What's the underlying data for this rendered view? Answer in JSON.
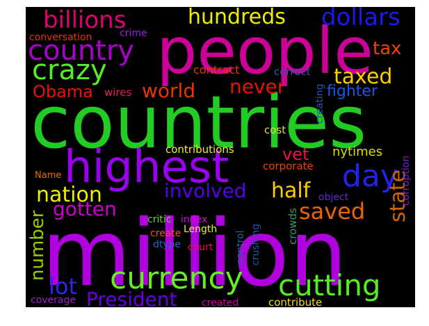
{
  "wordcloud": {
    "background": "#000000",
    "words": [
      {
        "text": "million",
        "color": "#b000e0"
      },
      {
        "text": "countries",
        "color": "#22cc22"
      },
      {
        "text": "people",
        "color": "#cc0099"
      },
      {
        "text": "highest",
        "color": "#9900ee"
      },
      {
        "text": "currency",
        "color": "#66ee22"
      },
      {
        "text": "cutting",
        "color": "#55ee22"
      },
      {
        "text": "country",
        "color": "#aa00cc"
      },
      {
        "text": "crazy",
        "color": "#55ee22"
      },
      {
        "text": "billions",
        "color": "#dd0077"
      },
      {
        "text": "hundreds",
        "color": "#eeee00"
      },
      {
        "text": "dollars",
        "color": "#1a1aee"
      },
      {
        "text": "tax",
        "color": "#ee4400"
      },
      {
        "text": "day",
        "color": "#2222ee"
      },
      {
        "text": "taxed",
        "color": "#ffcc00"
      },
      {
        "text": "Obama",
        "color": "#ee1100"
      },
      {
        "text": "world",
        "color": "#ee3300"
      },
      {
        "text": "never",
        "color": "#ee1100"
      },
      {
        "text": "fighter",
        "color": "#2255dd"
      },
      {
        "text": "nation",
        "color": "#eeee00"
      },
      {
        "text": "involved",
        "color": "#5500ee"
      },
      {
        "text": "half",
        "color": "#ffcc00"
      },
      {
        "text": "saved",
        "color": "#ee6600"
      },
      {
        "text": "gotten",
        "color": "#cc6600"
      },
      {
        "text": "state",
        "color": "#cc00cc"
      },
      {
        "text": "number",
        "color": "#99cc00"
      },
      {
        "text": "lot",
        "color": "#3322ee"
      },
      {
        "text": "President",
        "color": "#6600dd"
      },
      {
        "text": "vet",
        "color": "#ee1144"
      },
      {
        "text": "nytimes",
        "color": "#dddd00"
      },
      {
        "text": "conversation",
        "color": "#ee3300"
      },
      {
        "text": "crime",
        "color": "#9922dd"
      },
      {
        "text": "contract",
        "color": "#ee3300"
      },
      {
        "text": "correct",
        "color": "#3355aa"
      },
      {
        "text": "wires",
        "color": "#dd2266"
      },
      {
        "text": "creating",
        "color": "#2255aa"
      },
      {
        "text": "cost",
        "color": "#dddd44"
      },
      {
        "text": "contributions",
        "color": "#eeee33"
      },
      {
        "text": "corporate",
        "color": "#ee4400"
      },
      {
        "text": "corruption",
        "color": "#7722cc"
      },
      {
        "text": "Name",
        "color": "#ee6600"
      },
      {
        "text": "object",
        "color": "#6622cc"
      },
      {
        "text": "critic",
        "color": "#55dd22"
      },
      {
        "text": "index",
        "color": "#dd00dd"
      },
      {
        "text": "create",
        "color": "#ee5500"
      },
      {
        "text": "Length",
        "color": "#eeee33"
      },
      {
        "text": "dtype",
        "color": "#2266cc"
      },
      {
        "text": "court",
        "color": "#ee1133"
      },
      {
        "text": "control",
        "color": "#226699"
      },
      {
        "text": "crushing",
        "color": "#2255aa"
      },
      {
        "text": "crowds",
        "color": "#339966"
      },
      {
        "text": "coverage",
        "color": "#9922cc"
      },
      {
        "text": "created",
        "color": "#cc00aa"
      },
      {
        "text": "contribute",
        "color": "#eedd33"
      }
    ]
  }
}
